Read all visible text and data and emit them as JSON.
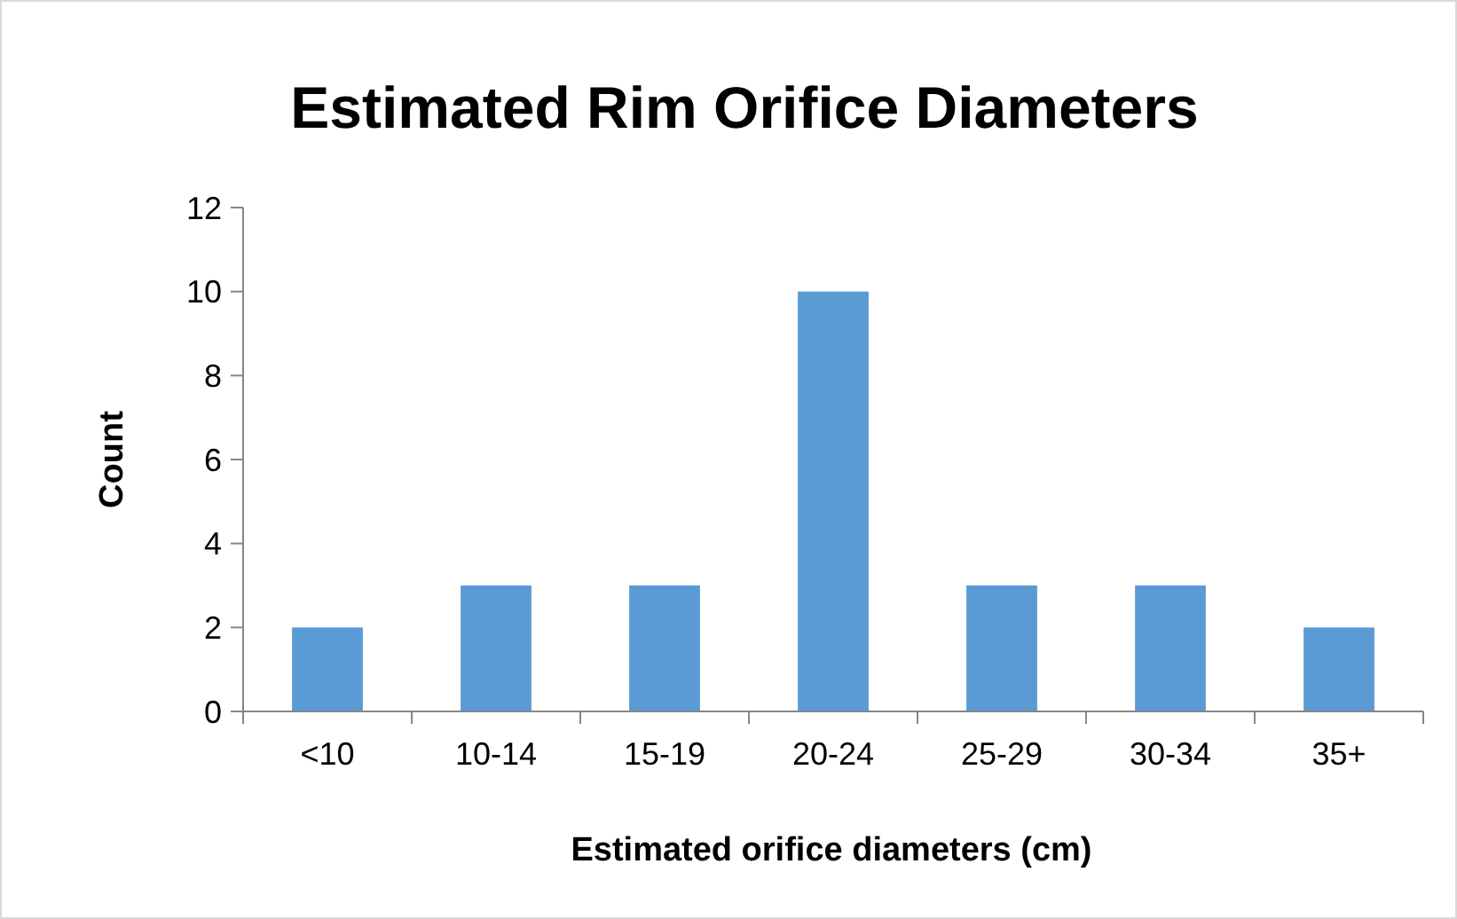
{
  "chart_data": {
    "type": "bar",
    "title": "Estimated Rim Orifice Diameters",
    "xlabel": "Estimated orifice diameters (cm)",
    "ylabel": "Count",
    "categories": [
      "<10",
      "10-14",
      "15-19",
      "20-24",
      "25-29",
      "30-34",
      "35+"
    ],
    "values": [
      2,
      3,
      3,
      10,
      3,
      3,
      2
    ],
    "color": "#5b9bd5",
    "ylim": [
      0,
      12
    ],
    "yticks": [
      0,
      2,
      4,
      6,
      8,
      10,
      12
    ],
    "grid": false
  }
}
